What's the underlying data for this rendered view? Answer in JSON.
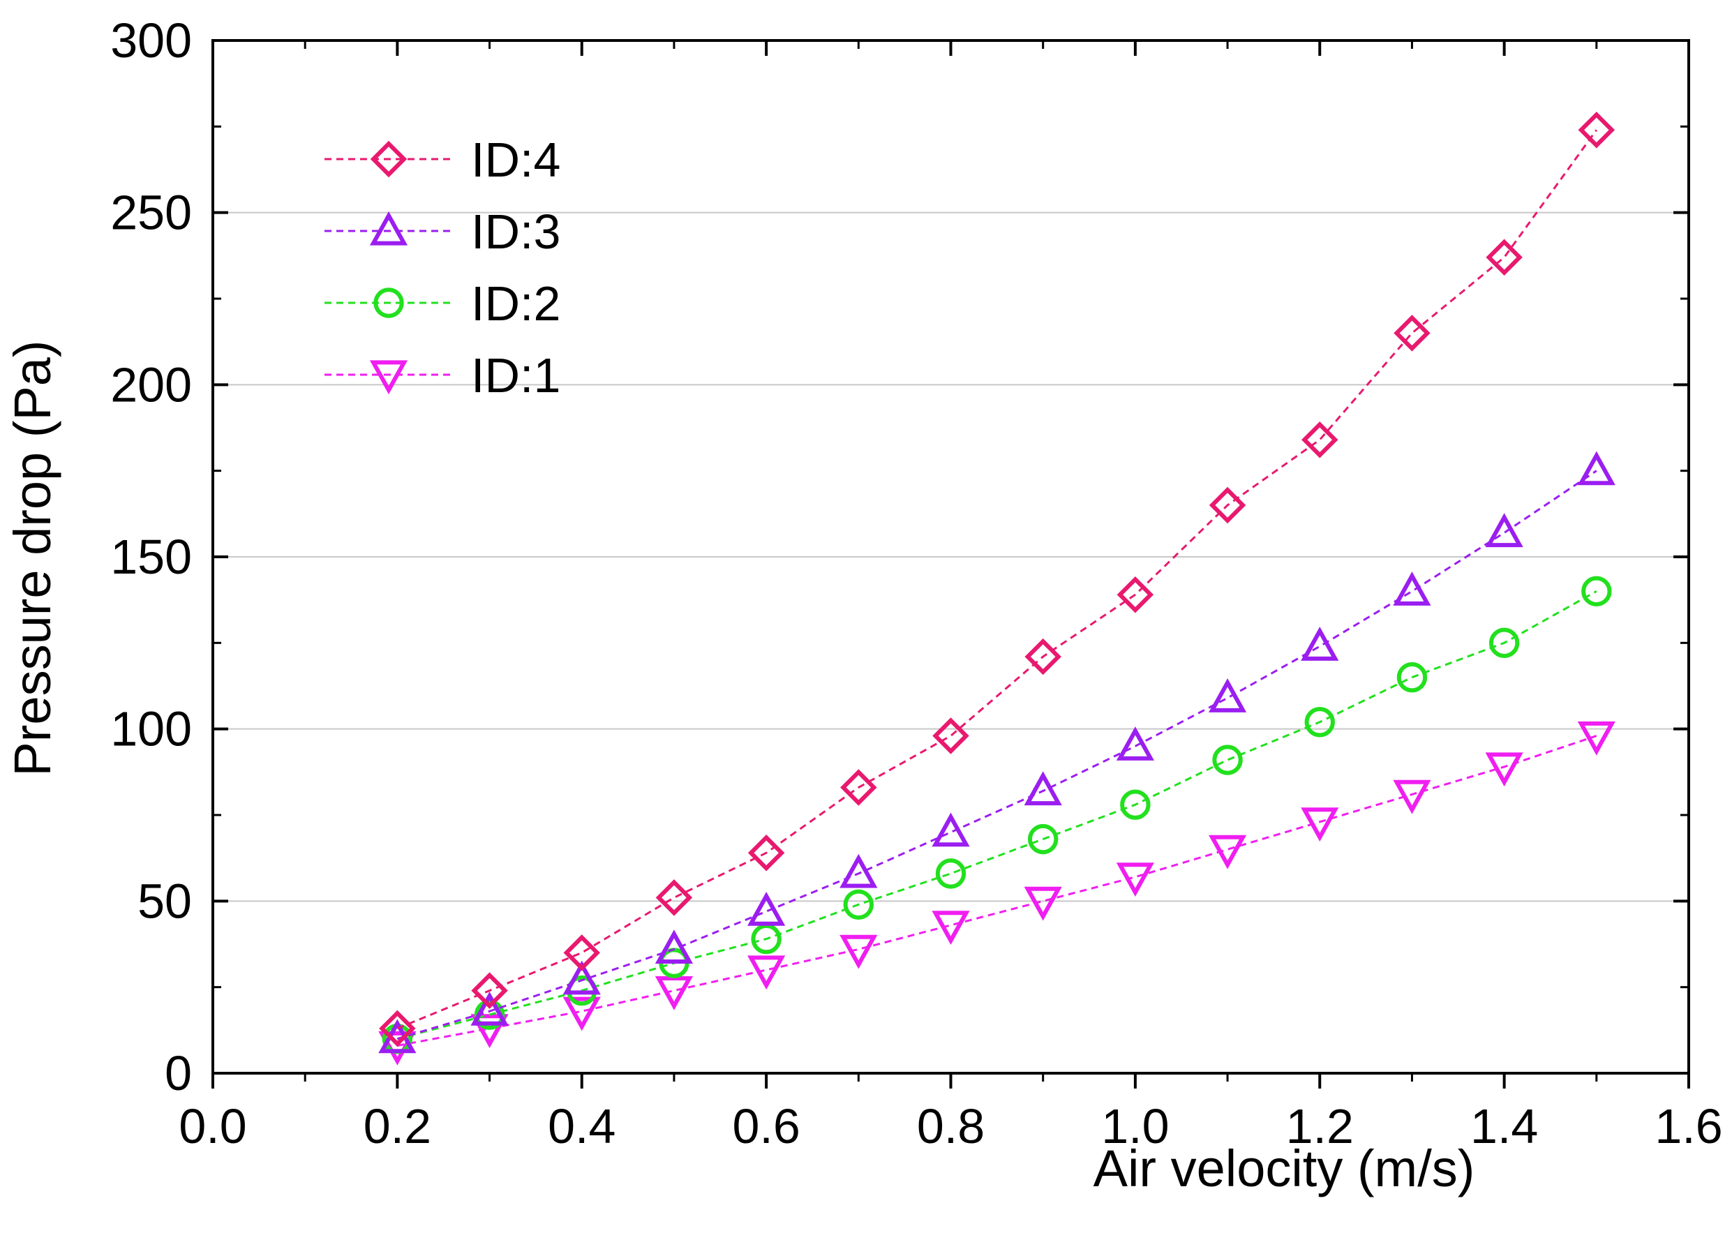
{
  "chart_data": {
    "type": "line",
    "title": "",
    "xlabel": "Air velocity (m/s)",
    "ylabel": "Pressure drop (Pa)",
    "xlim": [
      0.0,
      1.6
    ],
    "ylim": [
      0,
      300
    ],
    "xticks": [
      "0.0",
      "0.2",
      "0.4",
      "0.6",
      "0.8",
      "1.0",
      "1.2",
      "1.4",
      "1.6"
    ],
    "yticks": [
      "0",
      "50",
      "100",
      "150",
      "200",
      "250",
      "300"
    ],
    "grid": "horizontal",
    "legend_position": "top-left",
    "x": [
      0.2,
      0.3,
      0.4,
      0.5,
      0.6,
      0.7,
      0.8,
      0.9,
      1.0,
      1.1,
      1.2,
      1.3,
      1.4,
      1.5
    ],
    "series": [
      {
        "name": "ID:4",
        "marker": "diamond",
        "color": "#e8196e",
        "values": [
          13,
          24,
          35,
          51,
          64,
          83,
          98,
          121,
          139,
          165,
          184,
          215,
          237,
          274
        ]
      },
      {
        "name": "ID:3",
        "marker": "triangle-up",
        "color": "#9b1ef0",
        "values": [
          10,
          18,
          27,
          36,
          47,
          58,
          70,
          82,
          95,
          109,
          124,
          140,
          157,
          175
        ]
      },
      {
        "name": "ID:2",
        "marker": "circle",
        "color": "#22e01e",
        "values": [
          10,
          17,
          24,
          32,
          39,
          49,
          58,
          68,
          78,
          91,
          102,
          115,
          125,
          140
        ]
      },
      {
        "name": "ID:1",
        "marker": "triangle-down",
        "color": "#f01ef0",
        "values": [
          8,
          13,
          18,
          24,
          30,
          36,
          43,
          50,
          57,
          65,
          73,
          81,
          89,
          98
        ]
      }
    ]
  }
}
